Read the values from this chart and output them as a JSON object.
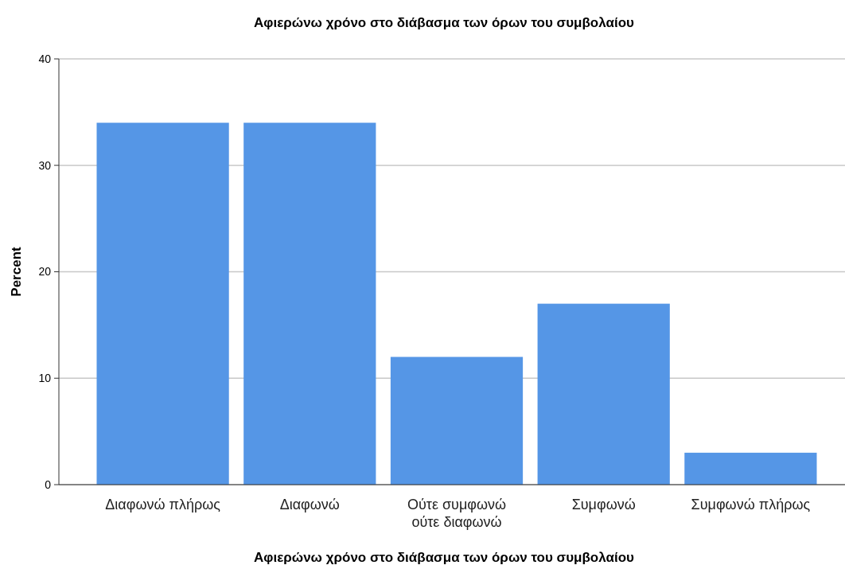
{
  "chart_data": {
    "type": "bar",
    "title": "Αφιερώνω χρόνο στο διάβασμα των όρων του συμβολαίου",
    "xlabel": "Αφιερώνω χρόνο στο διάβασμα των όρων του συμβολαίου",
    "ylabel": "Percent",
    "categories": [
      "Διαφωνώ πλήρως",
      "Διαφωνώ",
      "Ούτε συμφωνώ ούτε διαφωνώ",
      "Συμφωνώ",
      "Συμφωνώ πλήρως"
    ],
    "values": [
      34,
      34,
      12,
      17,
      3
    ],
    "color": "#5596e6",
    "ylim": [
      0,
      40
    ],
    "yticks": [
      0,
      10,
      20,
      30,
      40
    ],
    "grid": "y"
  }
}
